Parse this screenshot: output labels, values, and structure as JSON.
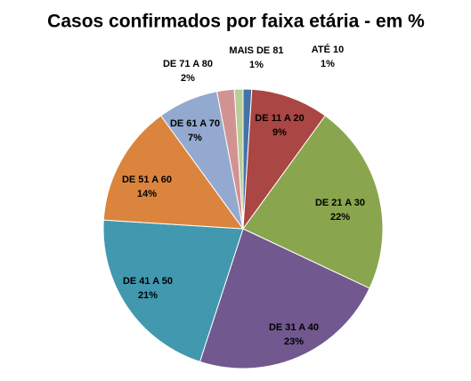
{
  "chart_data": {
    "type": "pie",
    "title": "Casos confirmados por faixa etária - em %",
    "categories": [
      "ATÉ 10",
      "DE 11 A 20",
      "DE 21 A 30",
      "DE 31 A 40",
      "DE 41 A 50",
      "DE 51 A 60",
      "DE 61 A 70",
      "DE 71 A 80",
      "MAIS DE 81"
    ],
    "values": [
      1,
      9,
      22,
      23,
      21,
      14,
      7,
      2,
      1
    ],
    "value_labels": [
      "1%",
      "9%",
      "22%",
      "23%",
      "21%",
      "14%",
      "7%",
      "2%",
      "1%"
    ],
    "colors": [
      "#4572a7",
      "#aa4643",
      "#89a54e",
      "#71588f",
      "#4198af",
      "#db843d",
      "#93a9cf",
      "#d19392",
      "#b9cd96"
    ]
  }
}
